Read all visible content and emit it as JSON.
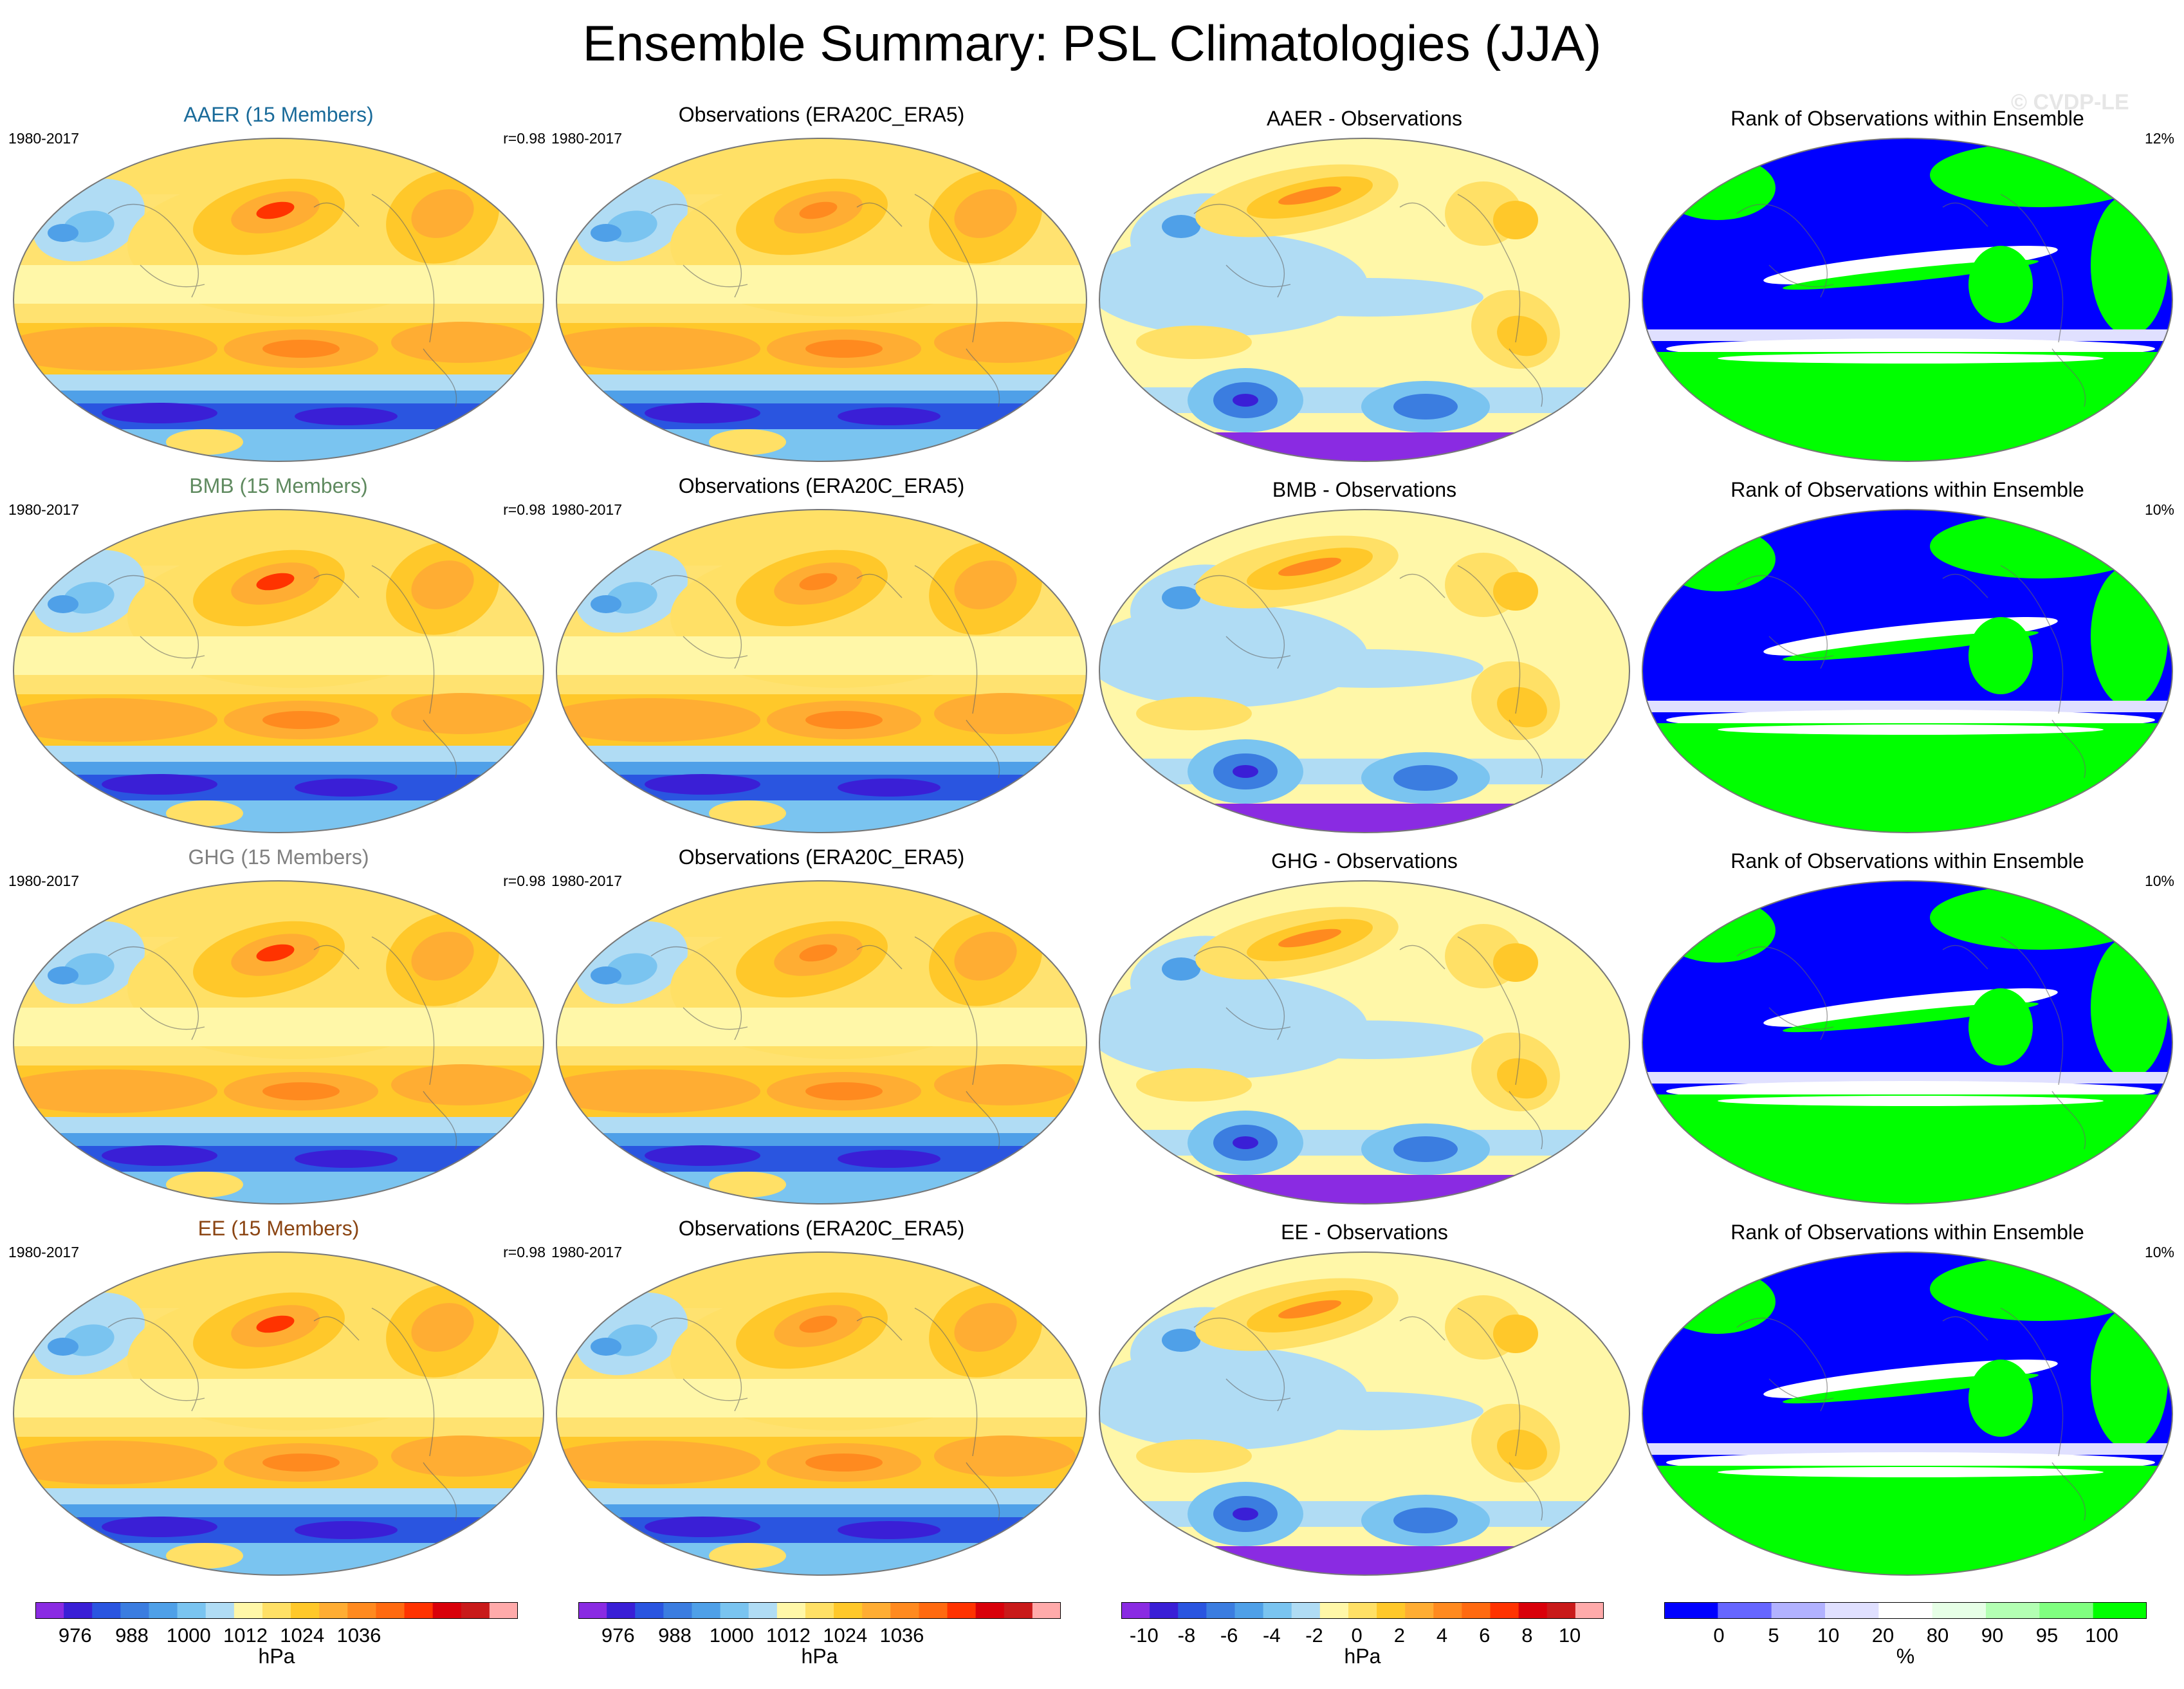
{
  "title": "Ensemble Summary: PSL Climatologies (JJA)",
  "watermark": "© CVDP-LE",
  "colors": {
    "aaer": "#1a6b9a",
    "bmb": "#5f8a5f",
    "ghg": "#808080",
    "ee": "#8b4513",
    "psl_scale": [
      "#8a2be2",
      "#3a1fd6",
      "#2a55e0",
      "#3b7de0",
      "#4fa0e8",
      "#7ac4f0",
      "#b0dcf4",
      "#fff7a8",
      "#ffe066",
      "#ffc82a",
      "#ffad33",
      "#ff8a1f",
      "#ff6a10",
      "#ff3300",
      "#d9000a",
      "#c91a1a",
      "#ffaaaa"
    ],
    "rank_scale": [
      "#0000ff",
      "#6666ff",
      "#b2b2ff",
      "#e0e0ff",
      "#ffffff",
      "#e6ffe6",
      "#b3ffb3",
      "#80ff80",
      "#00ff00"
    ]
  },
  "rows": [
    {
      "model": {
        "title": "AAER (15 Members)",
        "period": "1980-2017",
        "corr": "r=0.98",
        "color": "aaer"
      },
      "obs": {
        "title": "Observations (ERA20C_ERA5)",
        "period": "1980-2017"
      },
      "diff": {
        "title": "AAER - Observations"
      },
      "rank": {
        "title": "Rank of Observations within Ensemble",
        "pct": "12%"
      }
    },
    {
      "model": {
        "title": "BMB (15 Members)",
        "period": "1980-2017",
        "corr": "r=0.98",
        "color": "bmb"
      },
      "obs": {
        "title": "Observations (ERA20C_ERA5)",
        "period": "1980-2017"
      },
      "diff": {
        "title": "BMB - Observations"
      },
      "rank": {
        "title": "Rank of Observations within Ensemble",
        "pct": "10%"
      }
    },
    {
      "model": {
        "title": "GHG (15 Members)",
        "period": "1980-2017",
        "corr": "r=0.98",
        "color": "ghg"
      },
      "obs": {
        "title": "Observations (ERA20C_ERA5)",
        "period": "1980-2017"
      },
      "diff": {
        "title": "GHG - Observations"
      },
      "rank": {
        "title": "Rank of Observations within Ensemble",
        "pct": "10%"
      }
    },
    {
      "model": {
        "title": "EE (15 Members)",
        "period": "1980-2017",
        "corr": "r=0.98",
        "color": "ee"
      },
      "obs": {
        "title": "Observations (ERA20C_ERA5)",
        "period": "1980-2017"
      },
      "diff": {
        "title": "EE - Observations"
      },
      "rank": {
        "title": "Rank of Observations within Ensemble",
        "pct": "10%"
      }
    }
  ],
  "colorbars": [
    {
      "unit": "hPa",
      "labels": [
        "976",
        "988",
        "1000",
        "1012",
        "1024",
        "1036"
      ],
      "scale": "psl_scale"
    },
    {
      "unit": "hPa",
      "labels": [
        "976",
        "988",
        "1000",
        "1012",
        "1024",
        "1036"
      ],
      "scale": "psl_scale"
    },
    {
      "unit": "hPa",
      "labels": [
        "-10",
        "-8",
        "-6",
        "-4",
        "-2",
        "0",
        "2",
        "4",
        "6",
        "8",
        "10"
      ],
      "scale": "psl_scale"
    },
    {
      "unit": "%",
      "labels": [
        "0",
        "5",
        "10",
        "20",
        "80",
        "90",
        "95",
        "100"
      ],
      "scale": "rank_scale"
    }
  ],
  "chart_data": {
    "type": "heatmap",
    "title": "Ensemble Summary: PSL Climatologies (JJA)",
    "variable": "PSL",
    "season": "JJA",
    "period": "1980-2017",
    "observations": "ERA20C_ERA5",
    "ensembles": [
      "AAER",
      "BMB",
      "GHG",
      "EE"
    ],
    "members": 15,
    "pattern_correlation": [
      0.98,
      0.98,
      0.98,
      0.98
    ],
    "rank_percent": [
      12,
      10,
      10,
      10
    ],
    "psl_levels_hPa": [
      976,
      988,
      1000,
      1012,
      1024,
      1036
    ],
    "diff_levels_hPa": [
      -10,
      -8,
      -6,
      -4,
      -2,
      0,
      2,
      4,
      6,
      8,
      10
    ],
    "rank_levels_percent": [
      0,
      5,
      10,
      20,
      80,
      90,
      95,
      100
    ]
  }
}
